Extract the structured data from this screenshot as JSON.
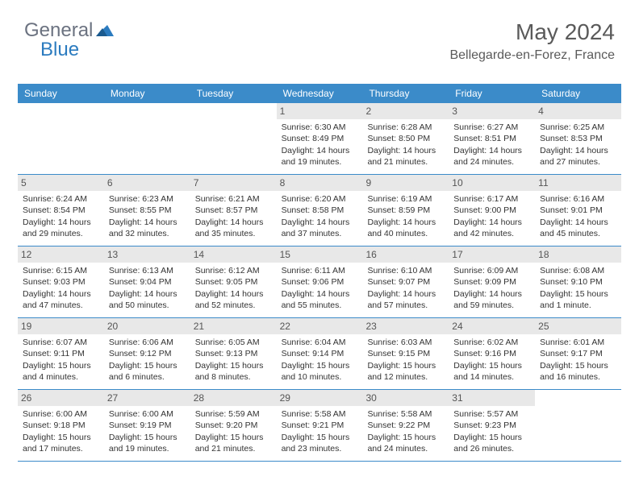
{
  "logo": {
    "general": "General",
    "blue": "Blue"
  },
  "header": {
    "month_title": "May 2024",
    "location": "Bellegarde-en-Forez, France"
  },
  "colors": {
    "header_bg": "#3b8bc9",
    "header_text": "#ffffff",
    "row_border": "#3b8bc9",
    "daynum_bg": "#e8e8e8",
    "text": "#333333",
    "logo_general": "#6b7280",
    "logo_blue": "#2b7bbf",
    "page_bg": "#ffffff"
  },
  "calendar": {
    "weekdays": [
      "Sunday",
      "Monday",
      "Tuesday",
      "Wednesday",
      "Thursday",
      "Friday",
      "Saturday"
    ],
    "weeks": [
      [
        null,
        null,
        null,
        {
          "n": "1",
          "sr": "Sunrise: 6:30 AM",
          "ss": "Sunset: 8:49 PM",
          "d1": "Daylight: 14 hours",
          "d2": "and 19 minutes."
        },
        {
          "n": "2",
          "sr": "Sunrise: 6:28 AM",
          "ss": "Sunset: 8:50 PM",
          "d1": "Daylight: 14 hours",
          "d2": "and 21 minutes."
        },
        {
          "n": "3",
          "sr": "Sunrise: 6:27 AM",
          "ss": "Sunset: 8:51 PM",
          "d1": "Daylight: 14 hours",
          "d2": "and 24 minutes."
        },
        {
          "n": "4",
          "sr": "Sunrise: 6:25 AM",
          "ss": "Sunset: 8:53 PM",
          "d1": "Daylight: 14 hours",
          "d2": "and 27 minutes."
        }
      ],
      [
        {
          "n": "5",
          "sr": "Sunrise: 6:24 AM",
          "ss": "Sunset: 8:54 PM",
          "d1": "Daylight: 14 hours",
          "d2": "and 29 minutes."
        },
        {
          "n": "6",
          "sr": "Sunrise: 6:23 AM",
          "ss": "Sunset: 8:55 PM",
          "d1": "Daylight: 14 hours",
          "d2": "and 32 minutes."
        },
        {
          "n": "7",
          "sr": "Sunrise: 6:21 AM",
          "ss": "Sunset: 8:57 PM",
          "d1": "Daylight: 14 hours",
          "d2": "and 35 minutes."
        },
        {
          "n": "8",
          "sr": "Sunrise: 6:20 AM",
          "ss": "Sunset: 8:58 PM",
          "d1": "Daylight: 14 hours",
          "d2": "and 37 minutes."
        },
        {
          "n": "9",
          "sr": "Sunrise: 6:19 AM",
          "ss": "Sunset: 8:59 PM",
          "d1": "Daylight: 14 hours",
          "d2": "and 40 minutes."
        },
        {
          "n": "10",
          "sr": "Sunrise: 6:17 AM",
          "ss": "Sunset: 9:00 PM",
          "d1": "Daylight: 14 hours",
          "d2": "and 42 minutes."
        },
        {
          "n": "11",
          "sr": "Sunrise: 6:16 AM",
          "ss": "Sunset: 9:01 PM",
          "d1": "Daylight: 14 hours",
          "d2": "and 45 minutes."
        }
      ],
      [
        {
          "n": "12",
          "sr": "Sunrise: 6:15 AM",
          "ss": "Sunset: 9:03 PM",
          "d1": "Daylight: 14 hours",
          "d2": "and 47 minutes."
        },
        {
          "n": "13",
          "sr": "Sunrise: 6:13 AM",
          "ss": "Sunset: 9:04 PM",
          "d1": "Daylight: 14 hours",
          "d2": "and 50 minutes."
        },
        {
          "n": "14",
          "sr": "Sunrise: 6:12 AM",
          "ss": "Sunset: 9:05 PM",
          "d1": "Daylight: 14 hours",
          "d2": "and 52 minutes."
        },
        {
          "n": "15",
          "sr": "Sunrise: 6:11 AM",
          "ss": "Sunset: 9:06 PM",
          "d1": "Daylight: 14 hours",
          "d2": "and 55 minutes."
        },
        {
          "n": "16",
          "sr": "Sunrise: 6:10 AM",
          "ss": "Sunset: 9:07 PM",
          "d1": "Daylight: 14 hours",
          "d2": "and 57 minutes."
        },
        {
          "n": "17",
          "sr": "Sunrise: 6:09 AM",
          "ss": "Sunset: 9:09 PM",
          "d1": "Daylight: 14 hours",
          "d2": "and 59 minutes."
        },
        {
          "n": "18",
          "sr": "Sunrise: 6:08 AM",
          "ss": "Sunset: 9:10 PM",
          "d1": "Daylight: 15 hours",
          "d2": "and 1 minute."
        }
      ],
      [
        {
          "n": "19",
          "sr": "Sunrise: 6:07 AM",
          "ss": "Sunset: 9:11 PM",
          "d1": "Daylight: 15 hours",
          "d2": "and 4 minutes."
        },
        {
          "n": "20",
          "sr": "Sunrise: 6:06 AM",
          "ss": "Sunset: 9:12 PM",
          "d1": "Daylight: 15 hours",
          "d2": "and 6 minutes."
        },
        {
          "n": "21",
          "sr": "Sunrise: 6:05 AM",
          "ss": "Sunset: 9:13 PM",
          "d1": "Daylight: 15 hours",
          "d2": "and 8 minutes."
        },
        {
          "n": "22",
          "sr": "Sunrise: 6:04 AM",
          "ss": "Sunset: 9:14 PM",
          "d1": "Daylight: 15 hours",
          "d2": "and 10 minutes."
        },
        {
          "n": "23",
          "sr": "Sunrise: 6:03 AM",
          "ss": "Sunset: 9:15 PM",
          "d1": "Daylight: 15 hours",
          "d2": "and 12 minutes."
        },
        {
          "n": "24",
          "sr": "Sunrise: 6:02 AM",
          "ss": "Sunset: 9:16 PM",
          "d1": "Daylight: 15 hours",
          "d2": "and 14 minutes."
        },
        {
          "n": "25",
          "sr": "Sunrise: 6:01 AM",
          "ss": "Sunset: 9:17 PM",
          "d1": "Daylight: 15 hours",
          "d2": "and 16 minutes."
        }
      ],
      [
        {
          "n": "26",
          "sr": "Sunrise: 6:00 AM",
          "ss": "Sunset: 9:18 PM",
          "d1": "Daylight: 15 hours",
          "d2": "and 17 minutes."
        },
        {
          "n": "27",
          "sr": "Sunrise: 6:00 AM",
          "ss": "Sunset: 9:19 PM",
          "d1": "Daylight: 15 hours",
          "d2": "and 19 minutes."
        },
        {
          "n": "28",
          "sr": "Sunrise: 5:59 AM",
          "ss": "Sunset: 9:20 PM",
          "d1": "Daylight: 15 hours",
          "d2": "and 21 minutes."
        },
        {
          "n": "29",
          "sr": "Sunrise: 5:58 AM",
          "ss": "Sunset: 9:21 PM",
          "d1": "Daylight: 15 hours",
          "d2": "and 23 minutes."
        },
        {
          "n": "30",
          "sr": "Sunrise: 5:58 AM",
          "ss": "Sunset: 9:22 PM",
          "d1": "Daylight: 15 hours",
          "d2": "and 24 minutes."
        },
        {
          "n": "31",
          "sr": "Sunrise: 5:57 AM",
          "ss": "Sunset: 9:23 PM",
          "d1": "Daylight: 15 hours",
          "d2": "and 26 minutes."
        },
        null
      ]
    ]
  }
}
